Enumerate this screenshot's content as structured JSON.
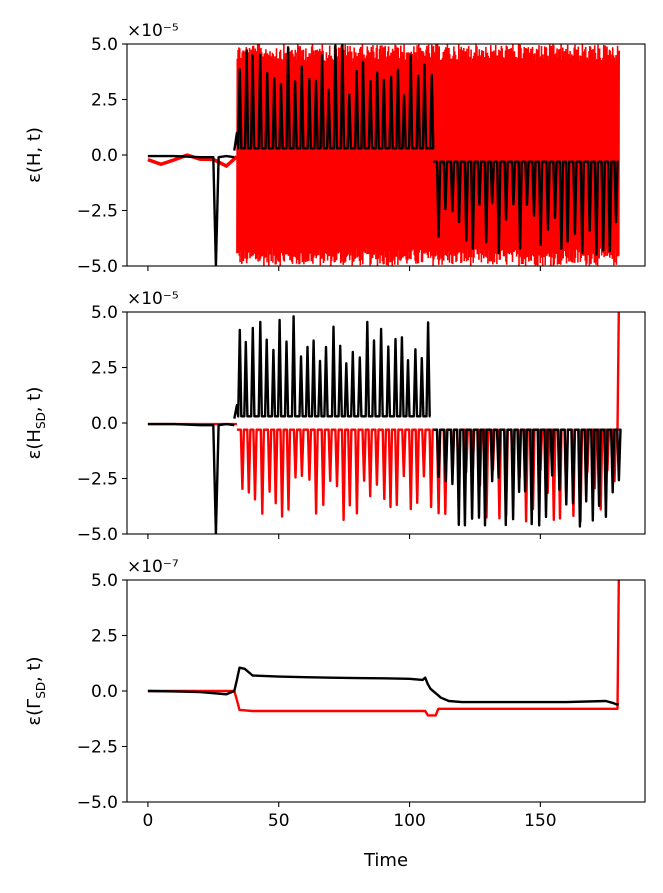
{
  "chart_data": [
    {
      "type": "line",
      "ylabel": "ε(H, t)",
      "ylabel_main": "ε(H, t)",
      "ylabel_sub": "",
      "ylim": [
        -5.0,
        5.0
      ],
      "xlim": [
        -8,
        190
      ],
      "offset_text": "×10⁻⁵",
      "yticks": [
        -5.0,
        -2.5,
        0.0,
        2.5,
        5.0
      ],
      "ytick_labels": [
        "−5.0",
        "−2.5",
        "0.0",
        "2.5",
        "5.0"
      ],
      "xticks": [
        0,
        50,
        100,
        150
      ],
      "x_ticklabels_visible": false,
      "series": [
        {
          "color": "#ff0000",
          "segments": [
            {
              "x": [
                0,
                5,
                10,
                15,
                20,
                25,
                30,
                34
              ],
              "y": [
                -0.3,
                -0.3,
                -0.3,
                -0.3,
                -0.3,
                -0.3,
                -0.3,
                -0.3
              ],
              "band": [
                -0.6,
                0.0
              ]
            },
            {
              "x": [
                34,
                109
              ],
              "band": [
                -5.0,
                5.0
              ],
              "note": "dense oscillation spanning full range"
            },
            {
              "x": [
                109,
                180
              ],
              "band": [
                -5.0,
                5.0
              ],
              "note": "dense oscillation spanning full range"
            }
          ]
        },
        {
          "color": "#000000",
          "segments": [
            {
              "x": [
                0,
                10,
                20,
                25,
                26,
                27,
                30,
                33
              ],
              "y": [
                -0.05,
                -0.05,
                -0.1,
                -0.1,
                -5.0,
                -0.1,
                -0.05,
                -0.1
              ]
            },
            {
              "x": [
                33,
                34,
                108
              ],
              "y": [
                0.2,
                1.0,
                0.3
              ],
              "spike_top": 5.0,
              "baseline": 0.3
            },
            {
              "x": [
                109,
                180
              ],
              "y": [
                -0.3,
                -0.3
              ],
              "spike_bottom": -4.5,
              "baseline": -0.3
            }
          ]
        }
      ]
    },
    {
      "type": "line",
      "ylabel": "ε(H_SD, t)",
      "ylabel_main": "ε(H",
      "ylabel_sub": "SD",
      "ylim": [
        -5.0,
        5.0
      ],
      "xlim": [
        -8,
        190
      ],
      "offset_text": "×10⁻⁵",
      "yticks": [
        -5.0,
        -2.5,
        0.0,
        2.5,
        5.0
      ],
      "ytick_labels": [
        "−5.0",
        "−2.5",
        "0.0",
        "2.5",
        "5.0"
      ],
      "xticks": [
        0,
        50,
        100,
        150
      ],
      "x_ticklabels_visible": false,
      "series": [
        {
          "color": "#ff0000",
          "segments": [
            {
              "x": [
                0,
                34
              ],
              "y": [
                -0.05,
                -0.05
              ]
            },
            {
              "x": [
                34,
                109
              ],
              "y": [
                -0.3,
                -0.3
              ],
              "spike_bottom": -4.8,
              "baseline": -0.3
            },
            {
              "x": [
                109,
                180
              ],
              "y": [
                -0.3,
                -0.3
              ],
              "spike_bottom": -4.5,
              "baseline": -0.3
            },
            {
              "x": [
                179.5,
                180
              ],
              "y": [
                -0.3,
                5.0
              ]
            }
          ]
        },
        {
          "color": "#000000",
          "segments": [
            {
              "x": [
                0,
                10,
                20,
                25,
                26,
                27,
                30,
                33
              ],
              "y": [
                -0.05,
                -0.05,
                -0.1,
                -0.1,
                -5.0,
                -0.1,
                -0.05,
                -0.1
              ]
            },
            {
              "x": [
                33,
                34,
                108
              ],
              "y": [
                0.2,
                0.8,
                0.3
              ],
              "spike_top": 5.0,
              "baseline": 0.3
            },
            {
              "x": [
                109,
                180
              ],
              "y": [
                -0.3,
                -0.3
              ],
              "spike_bottom": -4.7,
              "baseline": -0.3
            }
          ]
        }
      ]
    },
    {
      "type": "line",
      "ylabel": "ε(Γ_SD, t)",
      "ylabel_main": "ε(Γ",
      "ylabel_sub": "SD",
      "xlabel": "Time",
      "ylim": [
        -5.0,
        5.0
      ],
      "xlim": [
        -8,
        190
      ],
      "offset_text": "×10⁻⁷",
      "yticks": [
        -5.0,
        -2.5,
        0.0,
        2.5,
        5.0
      ],
      "ytick_labels": [
        "−5.0",
        "−2.5",
        "0.0",
        "2.5",
        "5.0"
      ],
      "xticks": [
        0,
        50,
        100,
        150
      ],
      "xtick_labels": [
        "0",
        "50",
        "100",
        "150"
      ],
      "x_ticklabels_visible": true,
      "series": [
        {
          "color": "#ff0000",
          "x": [
            0,
            10,
            20,
            30,
            33,
            34,
            35,
            40,
            60,
            80,
            100,
            106,
            107,
            110,
            111,
            120,
            140,
            160,
            178,
            179,
            179.5,
            180
          ],
          "y": [
            0.0,
            0.0,
            0.0,
            0.0,
            0.0,
            -0.4,
            -0.85,
            -0.9,
            -0.9,
            -0.9,
            -0.9,
            -0.9,
            -1.1,
            -1.1,
            -0.8,
            -0.8,
            -0.8,
            -0.8,
            -0.8,
            -0.8,
            -0.8,
            5.0
          ]
        },
        {
          "color": "#000000",
          "x": [
            0,
            10,
            20,
            25,
            30,
            33,
            34,
            35,
            37,
            40,
            50,
            60,
            70,
            80,
            90,
            100,
            105,
            106,
            107,
            108,
            110,
            112,
            115,
            120,
            140,
            160,
            175,
            178,
            179,
            180
          ],
          "y": [
            0.0,
            -0.02,
            -0.05,
            -0.1,
            -0.15,
            0.0,
            0.5,
            1.05,
            1.0,
            0.7,
            0.65,
            0.62,
            0.6,
            0.58,
            0.57,
            0.55,
            0.5,
            0.6,
            0.3,
            0.1,
            -0.1,
            -0.3,
            -0.45,
            -0.5,
            -0.5,
            -0.5,
            -0.45,
            -0.55,
            -0.6,
            -0.6
          ]
        }
      ]
    }
  ]
}
